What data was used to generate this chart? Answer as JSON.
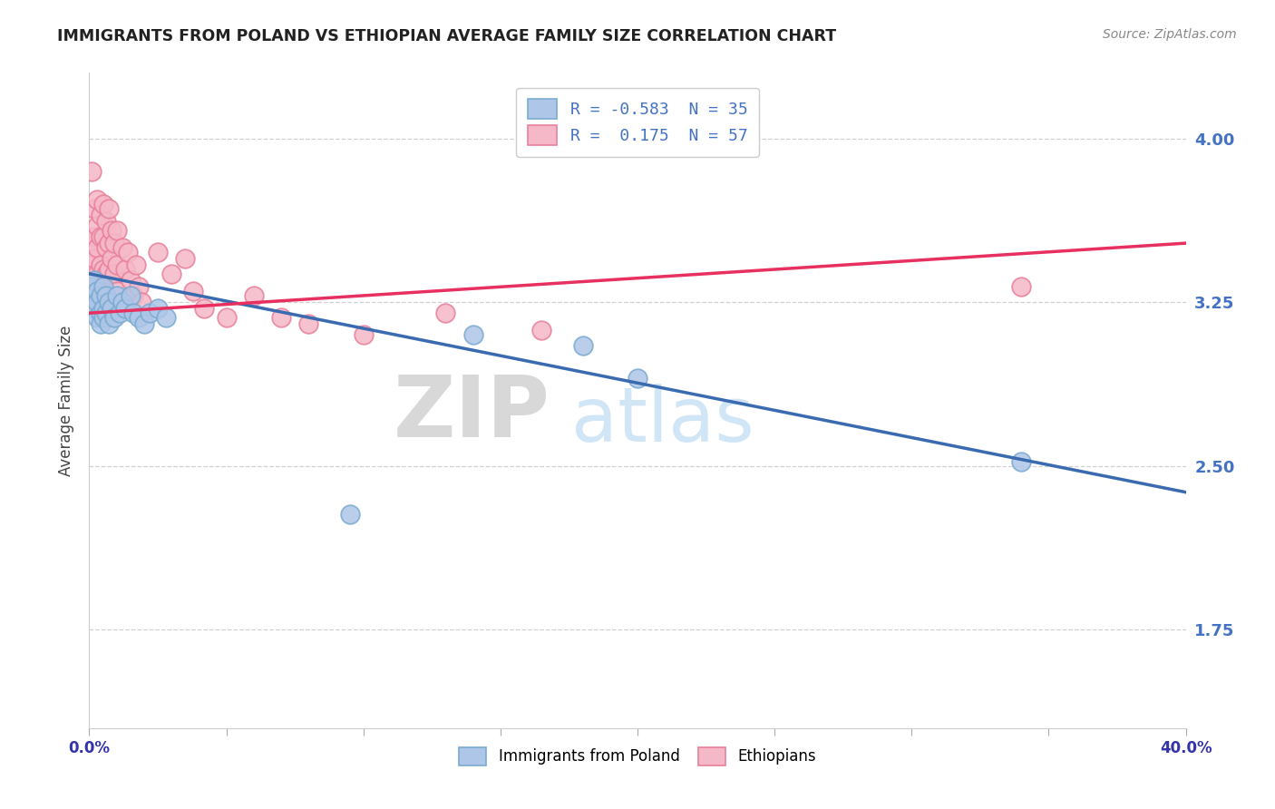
{
  "title": "IMMIGRANTS FROM POLAND VS ETHIOPIAN AVERAGE FAMILY SIZE CORRELATION CHART",
  "source": "Source: ZipAtlas.com",
  "ylabel": "Average Family Size",
  "yticks": [
    1.75,
    2.5,
    3.25,
    4.0
  ],
  "xlim": [
    0.0,
    0.4
  ],
  "ylim": [
    1.3,
    4.3
  ],
  "poland_points": [
    [
      0.001,
      3.32
    ],
    [
      0.001,
      3.28
    ],
    [
      0.002,
      3.35
    ],
    [
      0.002,
      3.22
    ],
    [
      0.003,
      3.3
    ],
    [
      0.003,
      3.18
    ],
    [
      0.003,
      3.25
    ],
    [
      0.004,
      3.28
    ],
    [
      0.004,
      3.2
    ],
    [
      0.004,
      3.15
    ],
    [
      0.005,
      3.22
    ],
    [
      0.005,
      3.32
    ],
    [
      0.005,
      3.18
    ],
    [
      0.006,
      3.28
    ],
    [
      0.006,
      3.2
    ],
    [
      0.007,
      3.25
    ],
    [
      0.007,
      3.15
    ],
    [
      0.008,
      3.22
    ],
    [
      0.009,
      3.18
    ],
    [
      0.01,
      3.28
    ],
    [
      0.011,
      3.2
    ],
    [
      0.012,
      3.25
    ],
    [
      0.013,
      3.22
    ],
    [
      0.015,
      3.28
    ],
    [
      0.016,
      3.2
    ],
    [
      0.018,
      3.18
    ],
    [
      0.02,
      3.15
    ],
    [
      0.022,
      3.2
    ],
    [
      0.025,
      3.22
    ],
    [
      0.028,
      3.18
    ],
    [
      0.095,
      2.28
    ],
    [
      0.14,
      3.1
    ],
    [
      0.18,
      3.05
    ],
    [
      0.2,
      2.9
    ],
    [
      0.34,
      2.52
    ]
  ],
  "ethiopia_points": [
    [
      0.001,
      3.85
    ],
    [
      0.001,
      3.52
    ],
    [
      0.001,
      3.42
    ],
    [
      0.001,
      3.3
    ],
    [
      0.002,
      3.68
    ],
    [
      0.002,
      3.55
    ],
    [
      0.002,
      3.45
    ],
    [
      0.002,
      3.3
    ],
    [
      0.003,
      3.72
    ],
    [
      0.003,
      3.6
    ],
    [
      0.003,
      3.5
    ],
    [
      0.003,
      3.38
    ],
    [
      0.003,
      3.25
    ],
    [
      0.004,
      3.65
    ],
    [
      0.004,
      3.55
    ],
    [
      0.004,
      3.42
    ],
    [
      0.004,
      3.32
    ],
    [
      0.005,
      3.7
    ],
    [
      0.005,
      3.55
    ],
    [
      0.005,
      3.4
    ],
    [
      0.005,
      3.28
    ],
    [
      0.006,
      3.62
    ],
    [
      0.006,
      3.5
    ],
    [
      0.006,
      3.38
    ],
    [
      0.007,
      3.68
    ],
    [
      0.007,
      3.52
    ],
    [
      0.007,
      3.4
    ],
    [
      0.008,
      3.58
    ],
    [
      0.008,
      3.45
    ],
    [
      0.008,
      3.2
    ],
    [
      0.009,
      3.52
    ],
    [
      0.009,
      3.38
    ],
    [
      0.01,
      3.58
    ],
    [
      0.01,
      3.42
    ],
    [
      0.01,
      3.3
    ],
    [
      0.012,
      3.5
    ],
    [
      0.013,
      3.4
    ],
    [
      0.014,
      3.48
    ],
    [
      0.015,
      3.35
    ],
    [
      0.016,
      3.28
    ],
    [
      0.017,
      3.42
    ],
    [
      0.018,
      3.32
    ],
    [
      0.019,
      3.25
    ],
    [
      0.025,
      3.48
    ],
    [
      0.03,
      3.38
    ],
    [
      0.035,
      3.45
    ],
    [
      0.038,
      3.3
    ],
    [
      0.042,
      3.22
    ],
    [
      0.05,
      3.18
    ],
    [
      0.06,
      3.28
    ],
    [
      0.07,
      3.18
    ],
    [
      0.08,
      3.15
    ],
    [
      0.1,
      3.1
    ],
    [
      0.13,
      3.2
    ],
    [
      0.165,
      3.12
    ],
    [
      0.34,
      3.32
    ]
  ],
  "poland_line": {
    "x0": 0.0,
    "y0": 3.38,
    "x1": 0.4,
    "y1": 2.38
  },
  "ethiopia_line": {
    "x0": 0.0,
    "y0": 3.2,
    "x1": 0.4,
    "y1": 3.52
  },
  "watermark_zip": "ZIP",
  "watermark_atlas": "atlas",
  "background_color": "#ffffff",
  "grid_color": "#d0d0d0",
  "poland_color": "#aec6e8",
  "poland_edge": "#7aaad0",
  "ethiopia_color": "#f5b8c8",
  "ethiopia_edge": "#e8809a",
  "poland_line_color": "#3a6ab0",
  "ethiopia_line_color": "#e83060",
  "title_color": "#222222",
  "source_color": "#888888",
  "ytick_color": "#4472c4",
  "xtick_color": "#3333aa"
}
